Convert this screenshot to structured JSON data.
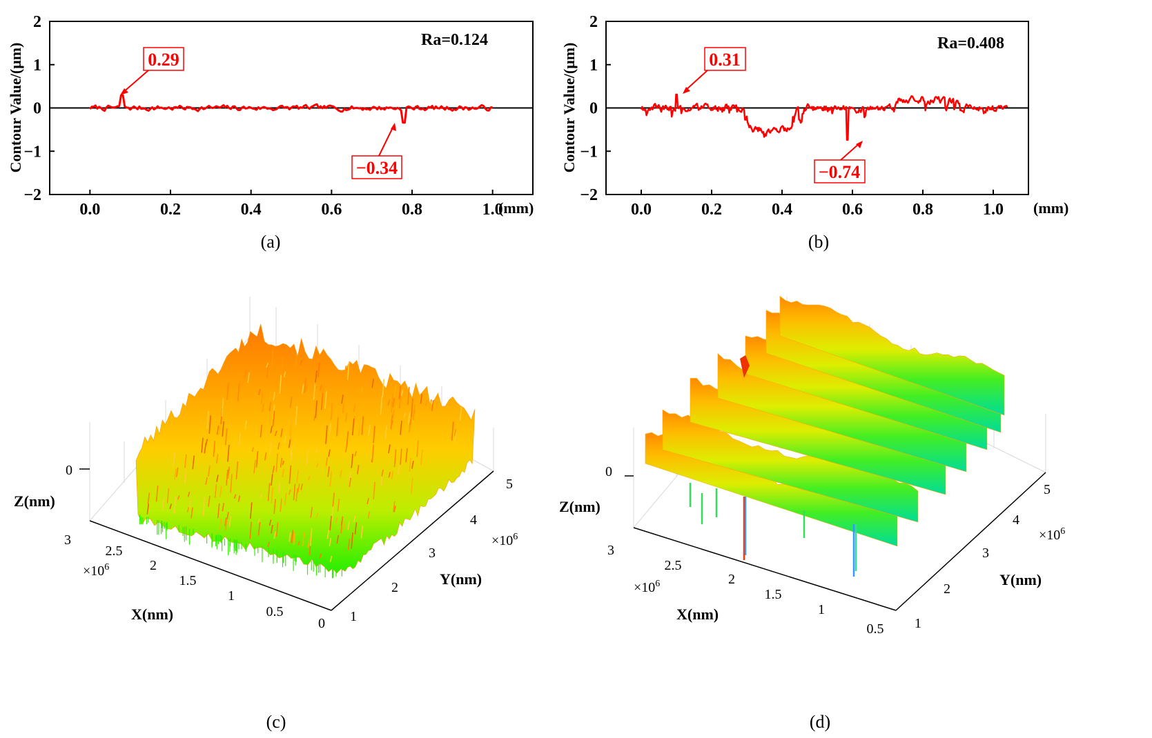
{
  "chart_data": [
    {
      "id": "a",
      "type": "line",
      "caption": "(a)",
      "ylabel": "Contour Value/(μm)",
      "xunit": "(mm)",
      "xlim": [
        -0.1,
        1.1
      ],
      "ylim": [
        -2,
        2
      ],
      "xticks": [
        "0.0",
        "0.2",
        "0.4",
        "0.6",
        "0.8",
        "1.0"
      ],
      "xtick_values": [
        0,
        0.2,
        0.4,
        0.6,
        0.8,
        1.0
      ],
      "yticks": [
        "−2",
        "−1",
        "0",
        "1",
        "2"
      ],
      "ytick_values": [
        -2,
        -1,
        0,
        1,
        2
      ],
      "ra_label": "Ra=0.124",
      "x_start": 0.0,
      "x_end": 1.0,
      "n_points": 220,
      "amplitude": 0.11,
      "seed": 7,
      "series_color": "#ff0000",
      "peak": {
        "x": 0.08,
        "y": 0.29,
        "label": "0.29"
      },
      "valley": {
        "x": 0.78,
        "y": -0.34,
        "label": "−0.34"
      }
    },
    {
      "id": "b",
      "type": "line",
      "caption": "(b)",
      "ylabel": "Contour Value/(μm)",
      "xunit": "(mm)",
      "xlim": [
        -0.1,
        1.1
      ],
      "ylim": [
        -2,
        2
      ],
      "xticks": [
        "0.0",
        "0.2",
        "0.4",
        "0.6",
        "0.8",
        "1.0"
      ],
      "xtick_values": [
        0,
        0.2,
        0.4,
        0.6,
        0.8,
        1.0
      ],
      "yticks": [
        "−2",
        "−1",
        "0",
        "1",
        "2"
      ],
      "ytick_values": [
        -2,
        -1,
        0,
        1,
        2
      ],
      "ra_label": "Ra=0.408",
      "x_start": 0.0,
      "x_end": 1.04,
      "n_points": 420,
      "amplitude": 0.15,
      "seed": 19,
      "series_color": "#ff0000",
      "peak": {
        "x": 0.1,
        "y": 0.31,
        "label": "0.31"
      },
      "valley": {
        "x": 0.585,
        "y": -0.74,
        "label": "−0.74"
      }
    },
    {
      "id": "c",
      "type": "surface",
      "caption": "(c)",
      "xlabel": "X(nm)",
      "ylabel": "Y(nm)",
      "zlabel": "Z(nm)",
      "xticks": [
        "0",
        "0.5",
        "1",
        "1.5",
        "2",
        "2.5",
        "3"
      ],
      "yticks": [
        "1",
        "2",
        "3",
        "4",
        "5"
      ],
      "zticks": [
        "0"
      ],
      "x_multiplier": "×10",
      "x_exponent": "6",
      "y_multiplier": "×10",
      "y_exponent": "6",
      "colormap": [
        "#00ff00",
        "#aaee00",
        "#ffcc00",
        "#ff9900",
        "#ff6600"
      ]
    },
    {
      "id": "d",
      "type": "surface",
      "caption": "(d)",
      "xlabel": "X(nm)",
      "ylabel": "Y(nm)",
      "zlabel": "Z(nm)",
      "xticks": [
        "0.5",
        "1",
        "1.5",
        "2",
        "2.5",
        "3"
      ],
      "yticks": [
        "1",
        "2",
        "3",
        "4",
        "5"
      ],
      "zticks": [
        "0"
      ],
      "x_multiplier": "×10",
      "x_exponent": "6",
      "y_multiplier": "×10",
      "y_exponent": "6",
      "colormap": [
        "#00ddaa",
        "#33ee33",
        "#ccee00",
        "#ffcc00",
        "#ff9900",
        "#ff5500"
      ]
    }
  ]
}
